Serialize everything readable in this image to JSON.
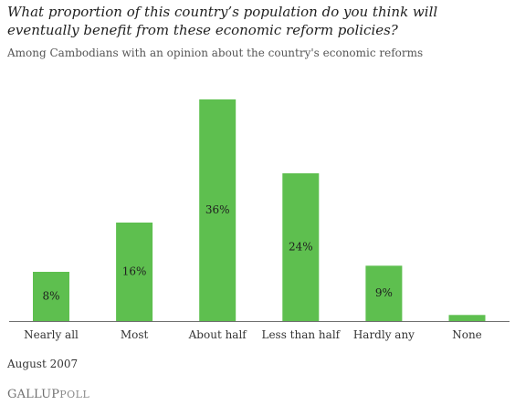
{
  "chart_data": {
    "type": "bar",
    "title": "What proportion of this country’s population do you think will eventually benefit from these economic reform policies?",
    "subtitle": "Among Cambodians with an opinion about the country's economic reforms",
    "categories": [
      "Nearly all",
      "Most",
      "About half",
      "Less than half",
      "Hardly any",
      "None"
    ],
    "values": [
      8,
      16,
      36,
      24,
      9,
      1
    ],
    "value_labels": [
      "8%",
      "16%",
      "36%",
      "24%",
      "9%",
      ""
    ],
    "unit": "%",
    "ylim": [
      0,
      36
    ],
    "grid": false,
    "legend": "none",
    "bar_color": "#5ebf4f"
  },
  "footnote": "August 2007",
  "logo": {
    "main": "GALLUP",
    "sub": "POLL"
  }
}
